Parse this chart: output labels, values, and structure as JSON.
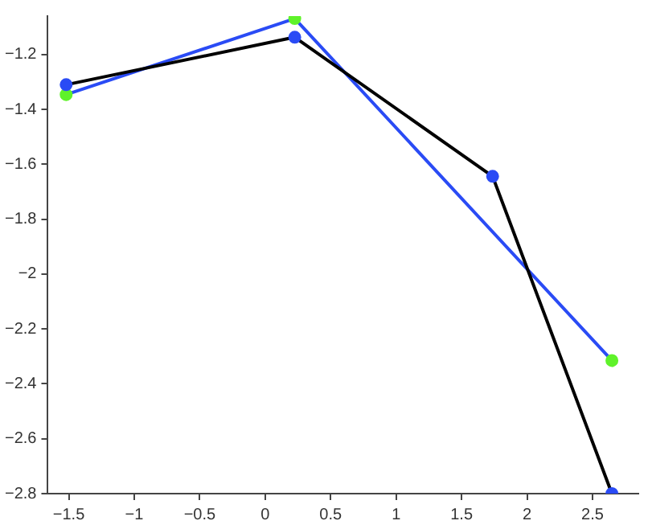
{
  "chart_data": {
    "type": "line",
    "xlim": [
      -1.66,
      2.85
    ],
    "ylim": [
      -2.8,
      -1.06
    ],
    "xticks": [
      -1.5,
      -1,
      -0.5,
      0,
      0.5,
      1,
      1.5,
      2,
      2.5
    ],
    "yticks": [
      -2.8,
      -2.6,
      -2.4,
      -2.2,
      -2,
      -1.8,
      -1.6,
      -1.4,
      -1.2
    ],
    "grid": false,
    "legend": false,
    "marker": "circle",
    "line_style": "solid",
    "series": [
      {
        "color": "#000000",
        "colors": [
          "#2a4bf5",
          "#2a4bf5",
          "#2a4bf5",
          "#2a4bf5"
        ],
        "x": [
          -1.52,
          0.226,
          1.737,
          2.648
        ],
        "values": [
          -1.31,
          -1.137,
          -1.644,
          -2.8
        ]
      },
      {
        "color": "#2a4bf5",
        "colors": [
          "#5ff22a",
          "#5ff22a",
          "#5ff22a"
        ],
        "x": [
          -1.52,
          0.226,
          2.648
        ],
        "values": [
          -1.346,
          -1.069,
          -2.315
        ]
      }
    ]
  }
}
